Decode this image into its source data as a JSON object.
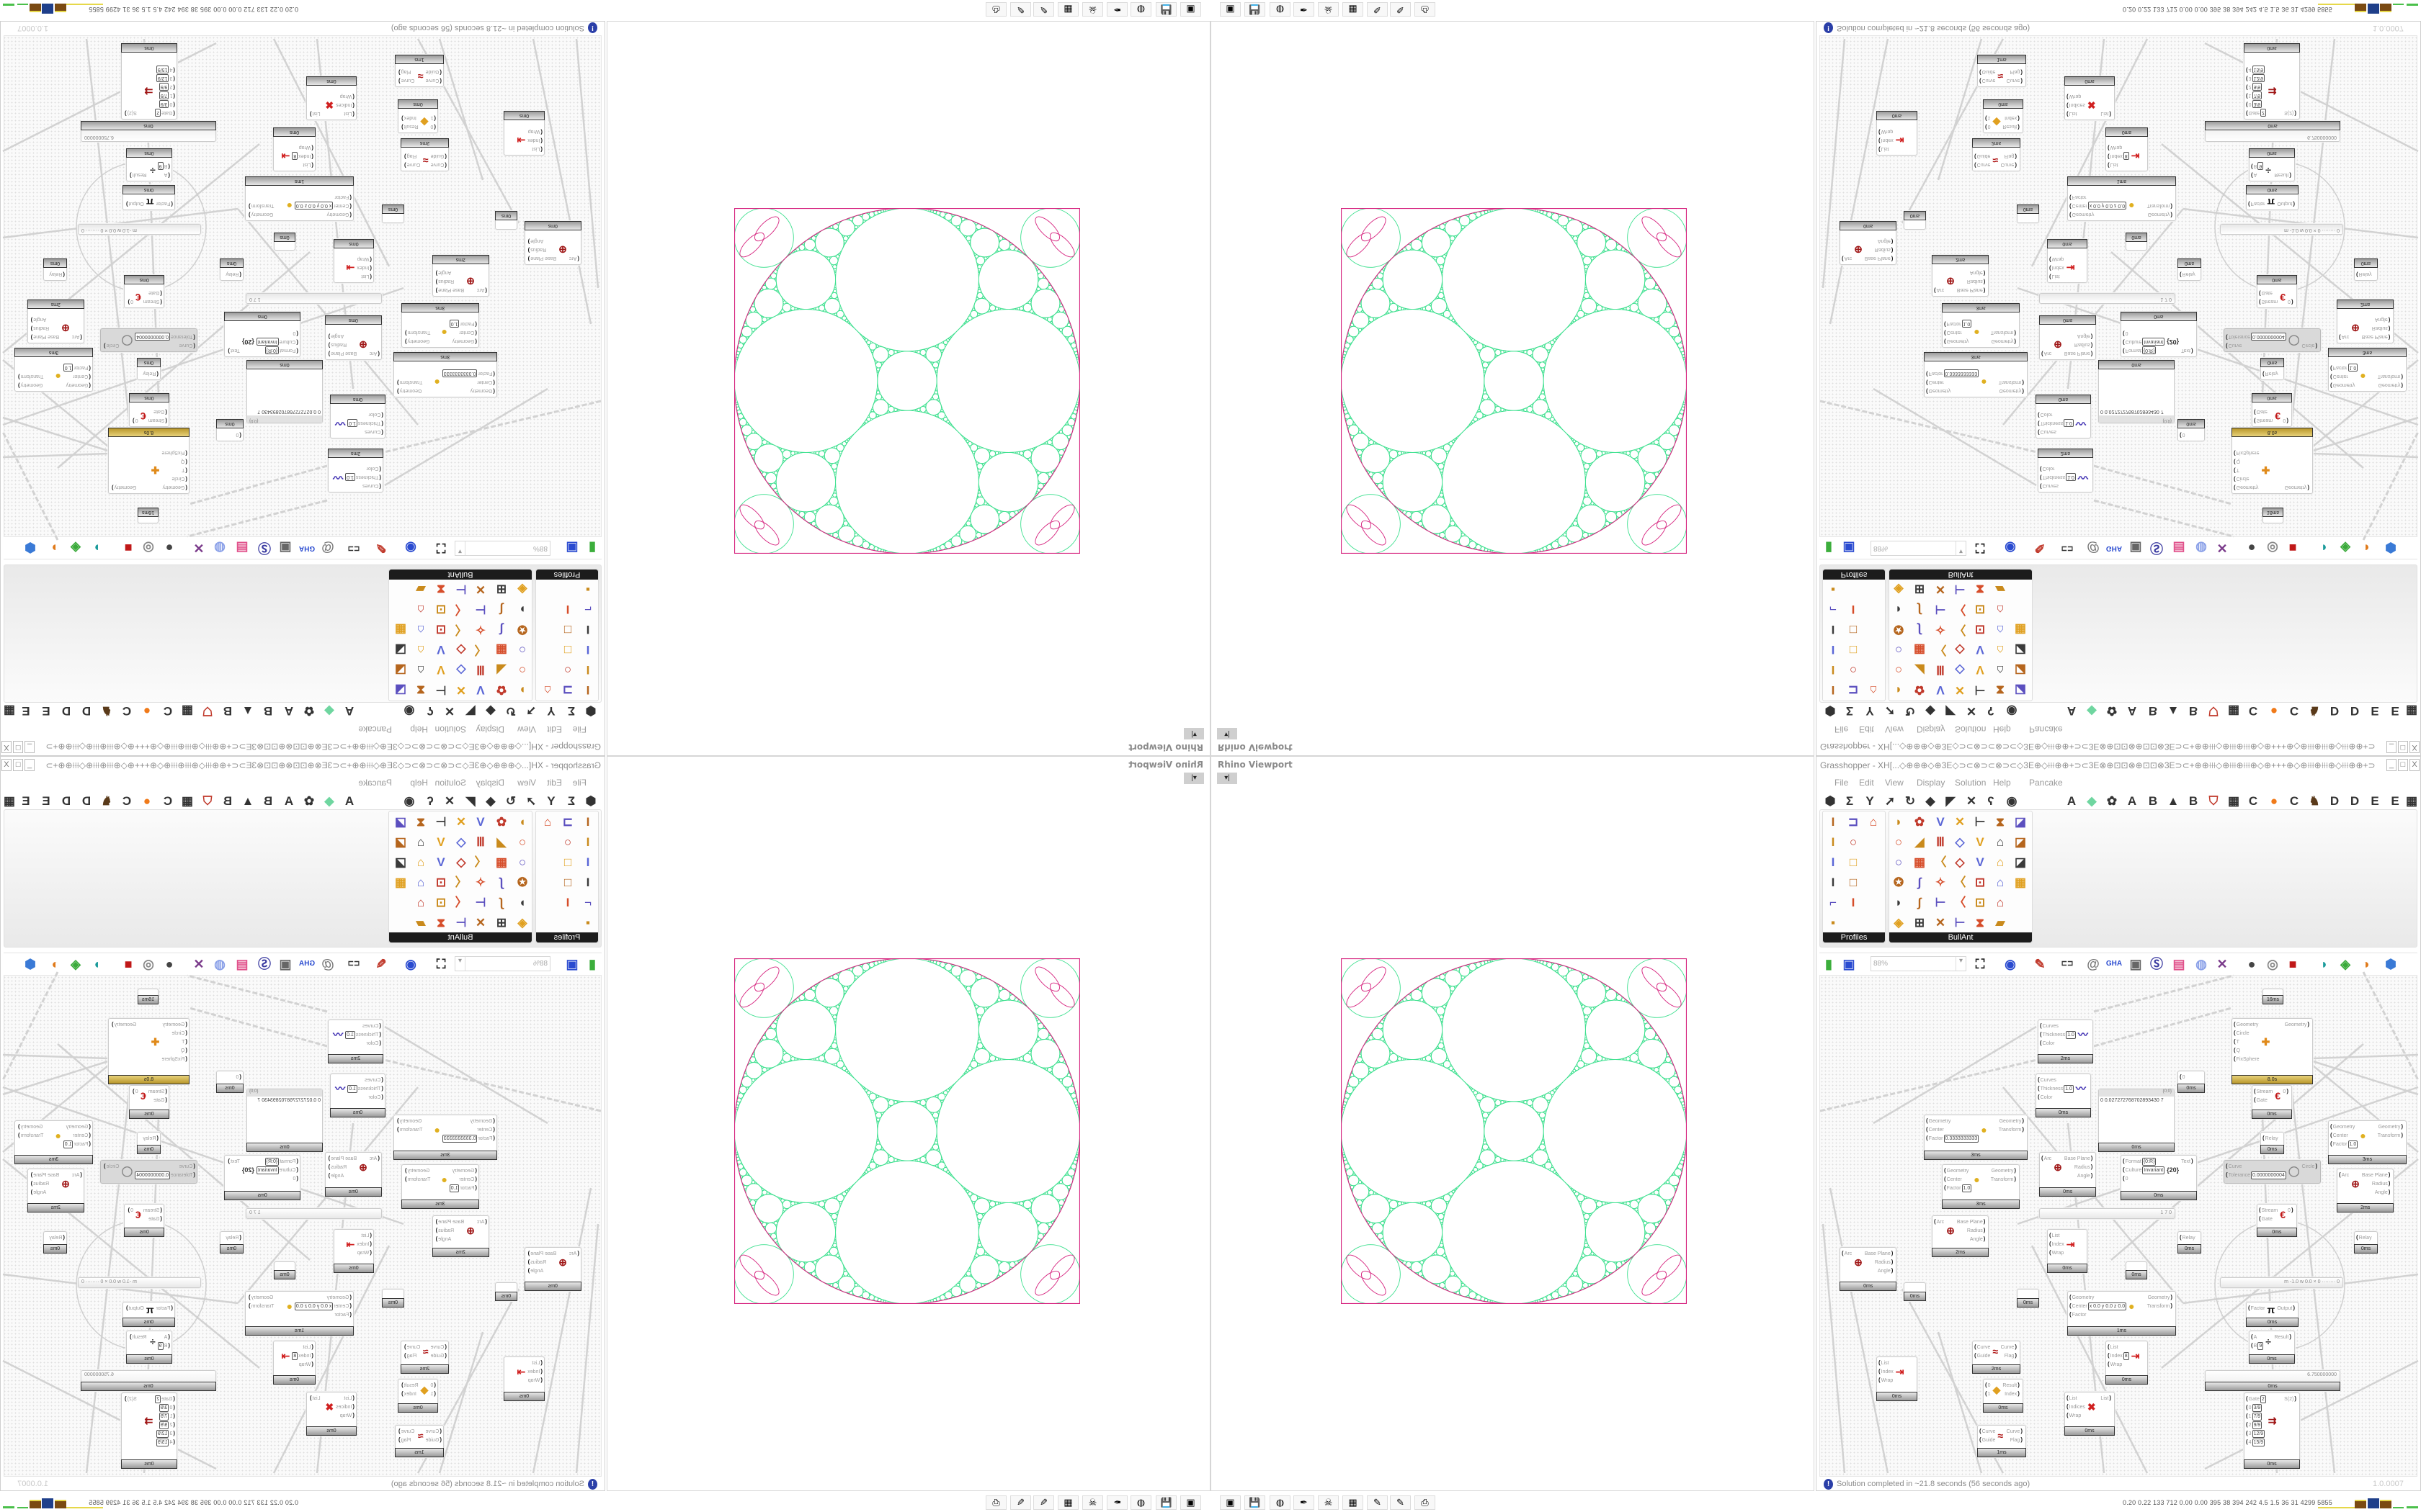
{
  "viewport": {
    "title": "Rhino Viewport",
    "dropdown_icon": "chevron-down-icon"
  },
  "grasshopper": {
    "title": "Grasshopper - XH[...◇⊕⊕⊕◇⊕3E◇⊃⊂⊗⊃⊂⊗⊃⊂◇3E⊕◇⟊⟊⟊⊕⊕+⊃⊂3E⊗⊕⊡⊡⊗⊕⊡⊡⊗3E⊃⊂+⊕⊕⟊⟊⟊◇⊕⟊⟊⟊⊕⟊⟊⟊⊕◇⊕+++⊕◇⊕⟊⟊⟊⊕⟊⟊⟊⊕◇⟊⟊⟊⊕⊕+⊃⊂3E⊗⊡⊡⊗⊕...",
    "window_buttons": [
      "_",
      "□",
      "X"
    ],
    "menu": [
      "File",
      "Edit",
      "View",
      "Display",
      "Solution",
      "Help",
      "Pancake"
    ],
    "tab_icons": [
      "hexagon-icon",
      "sigma-icon",
      "y-branch-icon",
      "arrow-icon",
      "loop-icon",
      "gem-icon",
      "flag-icon",
      "cross-icon",
      "hook-icon",
      "eye-icon"
    ],
    "tab_glyphs": [
      "⬢",
      "Σ",
      "Y",
      "➚",
      "↻",
      "◆",
      "◤",
      "✕",
      "ʕ",
      "◉"
    ],
    "tabs": [
      "A",
      "◆",
      "✿",
      "A",
      "B",
      "▲",
      "B",
      "⛉",
      "▦",
      "C",
      "●",
      "C",
      "♞",
      "D",
      "D",
      "E",
      "E",
      "▦"
    ],
    "tab_colors": {
      "orange": "#f07a1a",
      "green": "#6fd6a0"
    },
    "panels": [
      {
        "label": "Profiles",
        "icons": [
          "I",
          "⊐",
          "⌂",
          "I",
          "○",
          "I",
          "□",
          "I",
          "□",
          "⌐",
          "I",
          "▪"
        ]
      },
      {
        "label": "BullAnt",
        "icons": [
          "◗",
          "✿",
          "V",
          "✕",
          "⊢",
          "⧗",
          "◪",
          "○",
          "◢",
          "Ⅲ",
          "◇",
          "V",
          "⌂",
          "◪",
          "○",
          "▦",
          "〈",
          "◇",
          "V",
          "⌂",
          "◪",
          "✪",
          "∫",
          "✧",
          "〈",
          "⊡",
          "⌂",
          "▦",
          "◗",
          "∫",
          "⊢",
          "〈",
          "⊡",
          "⌂",
          "",
          "◈",
          "⊞",
          "✕",
          "⊢",
          "⧗",
          "▰",
          ""
        ]
      }
    ],
    "toolbar": {
      "icons_left": [
        "new-file-icon",
        "save-icon"
      ],
      "zoom_value": "88%",
      "icons_right": [
        "zoom-extents-icon",
        "preview-eye-icon",
        "sketch-pen-icon",
        "cluster-icon",
        "email-icon",
        "gha-icon",
        "canvas-icon",
        "search-icon",
        "package-icon",
        "balloon-icon",
        "wires-icon",
        "preview-shaded-icon",
        "preview-wire-icon",
        "preview-red-icon",
        "teal-shape-icon",
        "green-shape-icon",
        "sphere-icon",
        "blue-gem-icon"
      ],
      "glyphs_right": [
        "⛶",
        "◉",
        "✎",
        "⊏⊐",
        "@",
        "GHA",
        "▣",
        "Ⓢ",
        "▤",
        "◍",
        "✕",
        "●",
        "◎",
        "■",
        "◗",
        "◈",
        "◑",
        "⬢"
      ]
    },
    "canvas": {
      "nodes": [
        {
          "in": [
            [
              "Curves"
            ],
            [
              "Thickness",
              "1.0"
            ],
            [
              "Color"
            ]
          ],
          "out": [],
          "icon": "〰",
          "t": "2ms"
        },
        {
          "in": [
            [
              "Curves"
            ],
            [
              "Thickness",
              "1.0"
            ],
            [
              "Color"
            ]
          ],
          "out": [],
          "icon": "〰",
          "t": "0ms"
        },
        {
          "in": [
            [
              "Geometry"
            ],
            [
              "Circle"
            ],
            [
              "T"
            ],
            [
              "Q"
            ],
            [
              "FixSphere"
            ]
          ],
          "out": [
            [
              "Geometry"
            ]
          ],
          "icon": "✚",
          "t": "8.0s",
          "gold": true
        },
        {
          "in": [
            [
              "0"
            ]
          ],
          "out": [],
          "icon": "",
          "t": "0ms"
        },
        {
          "panel": true,
          "header": "{0;0}",
          "lines": [
            "0  0.027272768702893430 7"
          ],
          "t": "0ms"
        },
        {
          "in": [
            [
              "Stream"
            ],
            [
              "Gate"
            ]
          ],
          "out": [
            [
              "0"
            ]
          ],
          "icon": "€",
          "t": "0ms"
        },
        {
          "in": [
            [
              "Relay"
            ]
          ],
          "out": [],
          "icon": "",
          "t": "0ms"
        },
        {
          "in": [
            [
              "Geometry"
            ],
            [
              "Center"
            ],
            [
              "Factor",
              "0.3333333333"
            ]
          ],
          "out": [
            [
              "Geometry"
            ],
            [
              "Transform"
            ]
          ],
          "icon": "●",
          "t": "3ms"
        },
        {
          "in": [
            [
              "Geometry"
            ],
            [
              "Center"
            ],
            [
              "Factor",
              "1.0"
            ]
          ],
          "out": [
            [
              "Geometry"
            ],
            [
              "Transform"
            ]
          ],
          "icon": "●",
          "t": "3ms"
        },
        {
          "in": [
            [
              "Geometry"
            ],
            [
              "Center"
            ],
            [
              "Factor",
              "1.0"
            ]
          ],
          "out": [
            [
              "Geometry"
            ],
            [
              "Transform"
            ]
          ],
          "icon": "●",
          "t": "3ms"
        },
        {
          "in": [
            [
              "Arc"
            ]
          ],
          "out": [
            [
              "Base Plane"
            ],
            [
              "Radius"
            ],
            [
              "Angle"
            ]
          ],
          "icon": "⊕",
          "t": "0ms"
        },
        {
          "in": [
            [
              "Format",
              "{0:R}"
            ],
            [
              "Culture",
              "Invariant"
            ],
            [
              "0"
            ]
          ],
          "out": [
            [
              "Text"
            ]
          ],
          "icon": "{20}",
          "t": "0ms"
        },
        {
          "in": [
            [
              "Curve"
            ],
            [
              "Tolerance",
              "0.0000000004"
            ]
          ],
          "out": [
            [
              "Circle"
            ]
          ],
          "icon": "◯",
          "t": "",
          "disabled": true
        },
        {
          "in": [
            [
              "Arc"
            ]
          ],
          "out": [
            [
              "Base Plane"
            ],
            [
              "Radius"
            ],
            [
              "Angle"
            ]
          ],
          "icon": "⊕",
          "t": "2ms"
        },
        {
          "slider": true,
          "value": "1 7 0"
        },
        {
          "in": [
            [
              "Stream"
            ],
            [
              "Gate"
            ]
          ],
          "out": [
            [
              "0"
            ]
          ],
          "icon": "€",
          "t": "0ms"
        },
        {
          "in": [
            [
              "Arc"
            ]
          ],
          "out": [
            [
              "Base Plane"
            ],
            [
              "Radius"
            ],
            [
              "Angle"
            ]
          ],
          "icon": "⊕",
          "t": "2ms"
        },
        {
          "in": [
            [
              "Arc"
            ]
          ],
          "out": [
            [
              "Base Plane"
            ],
            [
              "Radius"
            ],
            [
              "Angle"
            ]
          ],
          "icon": "⊕",
          "t": "0ms"
        },
        {
          "in": [
            [
              "List"
            ],
            [
              "Index"
            ],
            [
              "Wrap"
            ]
          ],
          "out": [],
          "icon": "⇥",
          "t": "0ms"
        },
        {
          "in": [
            [
              "Relay"
            ]
          ],
          "out": [],
          "icon": "",
          "t": "0ms"
        },
        {
          "in": [
            [
              "Relay"
            ]
          ],
          "out": [],
          "icon": "",
          "t": "0ms"
        },
        {
          "in": [],
          "out": [],
          "icon": "",
          "t": "0ms"
        },
        {
          "in": [],
          "out": [],
          "icon": "",
          "t": "0ms"
        },
        {
          "in": [],
          "out": [],
          "icon": "",
          "t": "0ms"
        },
        {
          "in": [
            [
              "Geometry"
            ],
            [
              "Center",
              "x 0.0 y 0.0 z 0.0"
            ],
            [
              "Factor"
            ]
          ],
          "out": [
            [
              "Geometry"
            ],
            [
              "Transform"
            ]
          ],
          "icon": "●",
          "t": "1ms"
        },
        {
          "slider": true,
          "value": "m -1.0 w 0.0 × 0 ········ 0"
        },
        {
          "in": [
            [
              "Factor"
            ]
          ],
          "out": [
            [
              "Output"
            ]
          ],
          "icon": "π",
          "t": "0ms"
        },
        {
          "in": [
            [
              "A"
            ],
            [
              "B",
              "9"
            ]
          ],
          "out": [
            [
              "Result"
            ]
          ],
          "icon": "÷",
          "t": "0ms"
        },
        {
          "slider": true,
          "value": "6.750000000",
          "t": "0ms"
        },
        {
          "in": [
            [
              "Curve"
            ],
            [
              "Guide"
            ]
          ],
          "out": [
            [
              "Curve"
            ],
            [
              "Flag"
            ]
          ],
          "icon": "≈",
          "t": "2ms"
        },
        {
          "in": [
            [
              "List"
            ],
            [
              "Index",
              "8"
            ],
            [
              "Wrap"
            ]
          ],
          "out": [],
          "icon": "⇥",
          "t": "0ms"
        },
        {
          "in": [
            [
              "List"
            ],
            [
              "Index"
            ],
            [
              "Wrap"
            ]
          ],
          "out": [],
          "icon": "⇥",
          "t": "0ms"
        },
        {
          "in": [
            [
              "0"
            ],
            [
              "1"
            ]
          ],
          "out": [
            [
              "Result"
            ],
            [
              "Index"
            ]
          ],
          "icon": "◆",
          "t": "0ms"
        },
        {
          "in": [
            [
              "List"
            ],
            [
              "Indices"
            ],
            [
              "Wrap"
            ]
          ],
          "out": [
            [
              "List"
            ]
          ],
          "icon": "✖",
          "t": "0ms"
        },
        {
          "in": [
            [
              "Gate",
              "2"
            ],
            [
              "0",
              "3/9"
            ],
            [
              "1",
              "7/9"
            ],
            [
              "2",
              "9/9"
            ],
            [
              "3",
              "12/9"
            ],
            [
              "4",
              "15/9"
            ]
          ],
          "out": [
            [
              "S(2)"
            ]
          ],
          "icon": "⇉",
          "t": "0ms"
        },
        {
          "in": [
            [
              "Curve"
            ],
            [
              "Guide"
            ]
          ],
          "out": [
            [
              "Curve"
            ],
            [
              "Flag"
            ]
          ],
          "icon": "≈",
          "t": "1ms"
        },
        {
          "in": [],
          "out": [],
          "icon": "",
          "t": "16ms"
        }
      ]
    },
    "status": {
      "icon": "info-icon",
      "text": "Solution completed in ~21.8 seconds (56 seconds ago)",
      "version": "1.0.0007"
    }
  },
  "drawing_colors": {
    "circles": "#3ee08f",
    "boundary": "#d6247f"
  },
  "taskbar": {
    "icons": [
      "terminal-icon",
      "floppy-64-icon",
      "firefox-icon",
      "inkscape-icon",
      "red-skull-icon",
      "calculator-icon",
      "notepad-icon",
      "notepad-icon",
      "printer-icon"
    ],
    "glyphs": [
      "▣",
      "💾",
      "◍",
      "✒",
      "☠",
      "▦",
      "✎",
      "✎",
      "⎙"
    ],
    "stats": "0.20 0.22 133 712 0.00 0.00 395 38 394 242 4.5 1.5 36 31 4299 5855"
  }
}
